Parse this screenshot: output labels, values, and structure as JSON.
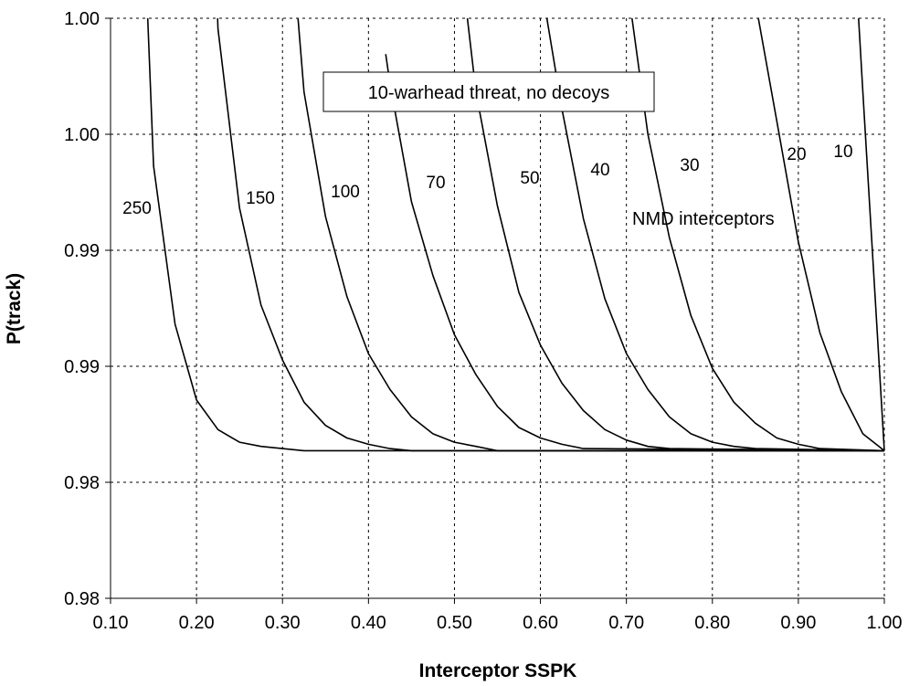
{
  "chart_data": {
    "type": "line",
    "title": "",
    "xlabel": "Interceptor SSPK",
    "ylabel": "P(track)",
    "xlim": [
      0.1,
      1.0
    ],
    "ylim": [
      0.975,
      1.0025
    ],
    "x_ticks": [
      0.1,
      0.2,
      0.3,
      0.4,
      0.5,
      0.6,
      0.7,
      0.8,
      0.9,
      1.0
    ],
    "x_tick_labels": [
      "0.10",
      "0.20",
      "0.30",
      "0.40",
      "0.50",
      "0.60",
      "0.70",
      "0.80",
      "0.90",
      "1.00"
    ],
    "y_ticks": [
      0.975,
      0.9805,
      0.986,
      0.9915,
      0.997,
      1.0025
    ],
    "y_tick_labels": [
      "0.98",
      "0.98",
      "0.99",
      "0.99",
      "1.00",
      "1.00"
    ],
    "grid": true,
    "legend": "none",
    "annotation_box": "10-warhead threat, no decoys",
    "annotation_text": "NMD interceptors",
    "series": [
      {
        "name": "250",
        "x": [
          0.1432,
          0.15,
          0.175,
          0.2,
          0.225,
          0.25,
          0.275,
          0.3,
          0.325,
          0.35,
          1.0
        ],
        "y": [
          1.0025,
          0.9955,
          0.988,
          0.9844,
          0.983,
          0.9824,
          0.9822,
          0.9821,
          0.982,
          0.982,
          0.982
        ]
      },
      {
        "name": "150",
        "x": [
          0.2245,
          0.225,
          0.25,
          0.275,
          0.3,
          0.325,
          0.35,
          0.375,
          0.4,
          0.425,
          0.45,
          1.0
        ],
        "y": [
          1.0025,
          1.002,
          0.9935,
          0.9889,
          0.9863,
          0.9843,
          0.9832,
          0.9826,
          0.9823,
          0.9821,
          0.982,
          0.982
        ]
      },
      {
        "name": "100",
        "x": [
          0.318,
          0.325,
          0.35,
          0.375,
          0.4,
          0.425,
          0.45,
          0.475,
          0.5,
          0.525,
          0.55,
          1.0
        ],
        "y": [
          1.0025,
          0.999,
          0.9931,
          0.9893,
          0.9866,
          0.9849,
          0.9836,
          0.9828,
          0.9824,
          0.9822,
          0.982,
          0.982
        ]
      },
      {
        "name": "70",
        "x": [
          0.42,
          0.425,
          0.45,
          0.475,
          0.5,
          0.525,
          0.55,
          0.575,
          0.6,
          0.625,
          0.65,
          1.0
        ],
        "y": [
          1.0008,
          0.9994,
          0.9938,
          0.9903,
          0.9875,
          0.9856,
          0.9841,
          0.9831,
          0.9826,
          0.9823,
          0.9821,
          0.982
        ]
      },
      {
        "name": "50",
        "x": [
          0.515,
          0.525,
          0.55,
          0.575,
          0.6,
          0.625,
          0.65,
          0.675,
          0.7,
          0.725,
          0.75,
          1.0
        ],
        "y": [
          1.0025,
          0.999,
          0.9936,
          0.9895,
          0.987,
          0.9852,
          0.9839,
          0.983,
          0.9825,
          0.9822,
          0.9821,
          0.982
        ]
      },
      {
        "name": "40",
        "x": [
          0.6075,
          0.625,
          0.65,
          0.675,
          0.7,
          0.725,
          0.75,
          0.775,
          0.8,
          0.825,
          0.85,
          1.0
        ],
        "y": [
          1.0025,
          0.9982,
          0.993,
          0.9892,
          0.9866,
          0.9849,
          0.9836,
          0.9828,
          0.9824,
          0.9822,
          0.9821,
          0.982
        ]
      },
      {
        "name": "30",
        "x": [
          0.7065,
          0.725,
          0.75,
          0.775,
          0.8,
          0.825,
          0.85,
          0.875,
          0.9,
          0.925,
          1.0
        ],
        "y": [
          1.0025,
          0.997,
          0.9921,
          0.9884,
          0.9859,
          0.9843,
          0.9833,
          0.9826,
          0.9823,
          0.9821,
          0.982
        ]
      },
      {
        "name": "20",
        "x": [
          0.8535,
          0.875,
          0.9,
          0.925,
          0.95,
          0.975,
          1.0
        ],
        "y": [
          1.0025,
          0.9976,
          0.9919,
          0.9876,
          0.9848,
          0.9828,
          0.982
        ]
      },
      {
        "name": "10",
        "x": [
          0.97,
          0.975,
          1.0
        ],
        "y": [
          1.0025,
          0.999,
          0.982
        ]
      }
    ]
  }
}
